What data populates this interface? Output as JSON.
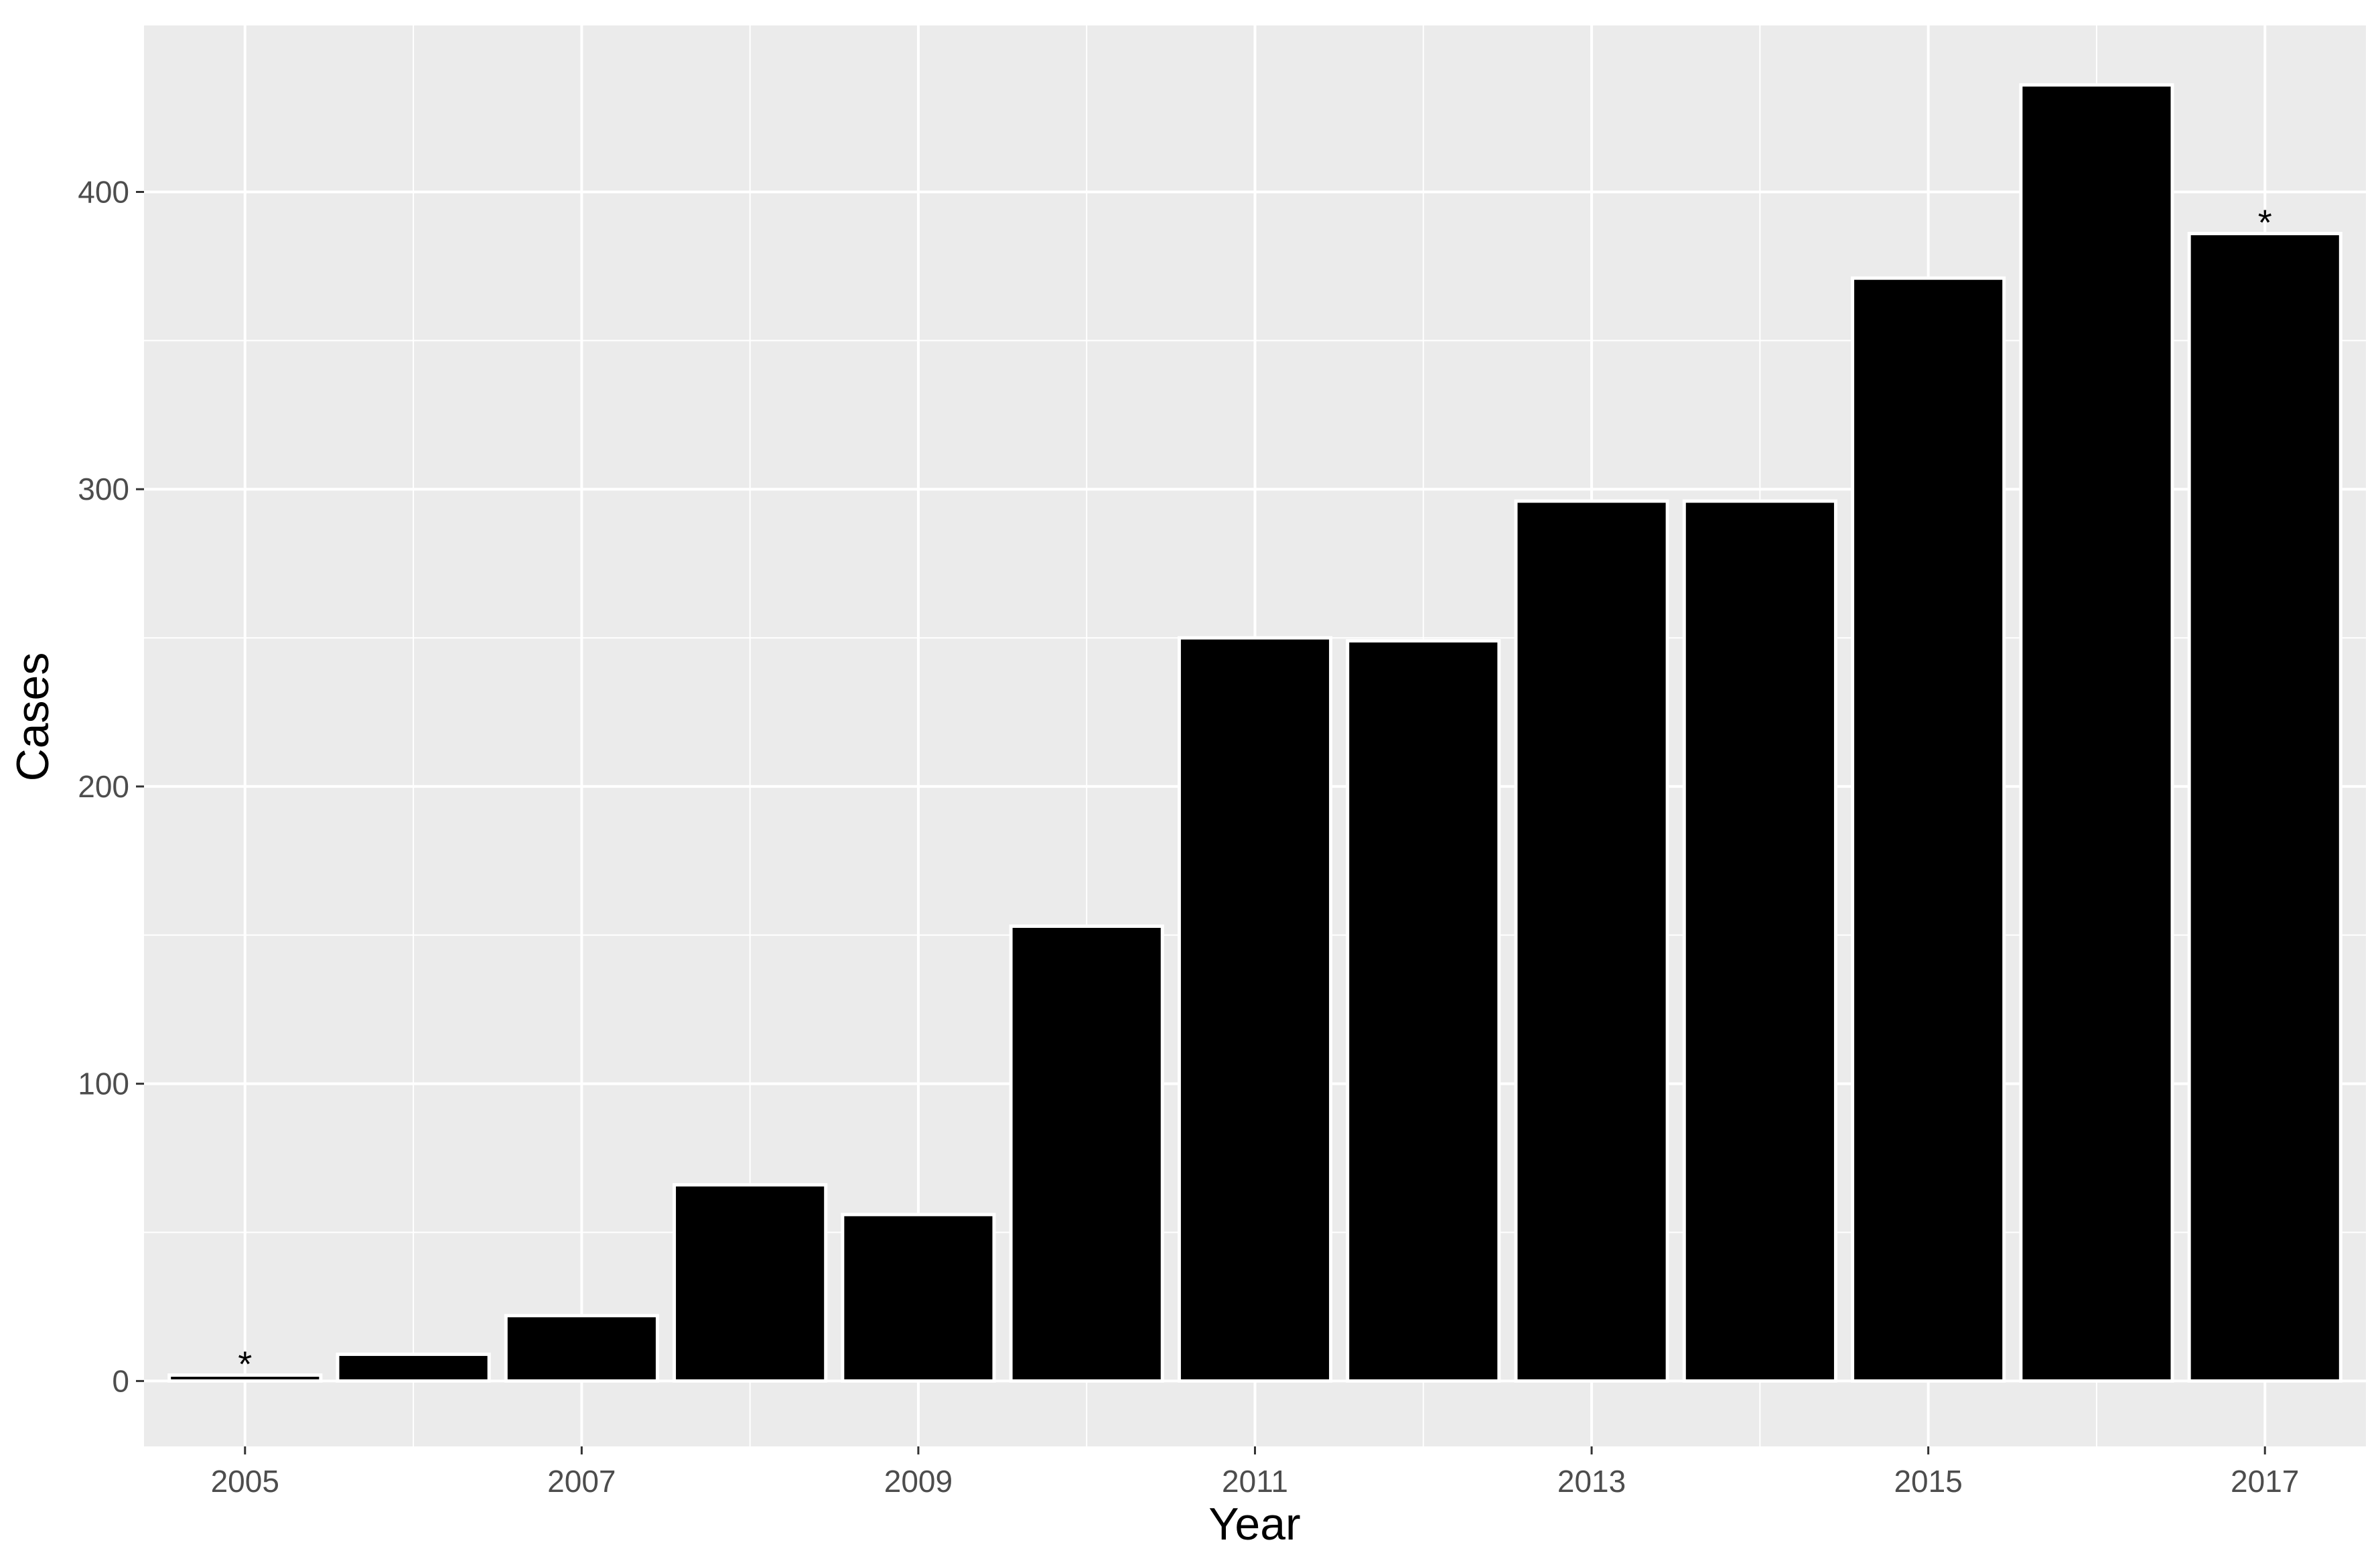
{
  "chart_data": {
    "type": "bar",
    "categories": [
      "2005",
      "2006",
      "2007",
      "2008",
      "2009",
      "2010",
      "2011",
      "2012",
      "2013",
      "2014",
      "2015",
      "2016",
      "2017"
    ],
    "values": [
      2,
      9,
      22,
      66,
      56,
      153,
      250,
      249,
      296,
      296,
      371,
      436,
      386
    ],
    "x_tick_labels": [
      "2005",
      "2007",
      "2009",
      "2011",
      "2013",
      "2015",
      "2017"
    ],
    "y_ticks": [
      0,
      100,
      200,
      300,
      400
    ],
    "xlabel": "Year",
    "ylabel": "Cases",
    "ylim": [
      -22,
      456
    ],
    "grid": true,
    "legend": "none",
    "annotations": [
      {
        "category": "2005",
        "text": "*"
      },
      {
        "category": "2017",
        "text": "*"
      }
    ],
    "colors": {
      "bar_fill": "#000000",
      "bar_outline": "#ffffff",
      "panel_background": "#ebebeb",
      "grid": "#ffffff"
    }
  }
}
